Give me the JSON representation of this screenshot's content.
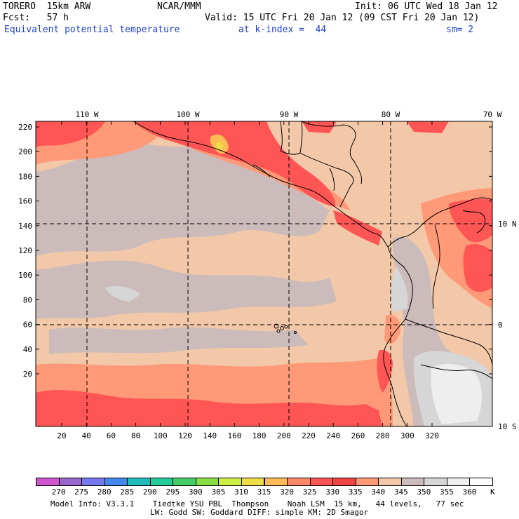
{
  "header": {
    "model": "TORERO  15km ARW",
    "org": "NCAR/MMM",
    "init": "Init: 06 UTC Wed 18 Jan 12",
    "fcst": "Fcst:   57 h",
    "valid": "Valid: 15 UTC Fri 20 Jan 12 (09 CST Fri 20 Jan 12)",
    "field": "Equivalent potential temperature",
    "level": "at k-index =  44",
    "smooth": "sm= 2"
  },
  "map": {
    "lon_labels": [
      "110 W",
      "100 W",
      "90 W",
      "80 W",
      "70 W"
    ],
    "lat_labels": [
      "10 N",
      "0",
      "10 S"
    ],
    "y_ticks": [
      "220",
      "200",
      "180",
      "160",
      "140",
      "120",
      "100",
      "80",
      "60",
      "40",
      "20"
    ],
    "x_ticks": [
      "20",
      "40",
      "60",
      "80",
      "100",
      "120",
      "140",
      "160",
      "180",
      "200",
      "220",
      "240",
      "260",
      "280",
      "300",
      "320"
    ]
  },
  "colorbar": {
    "unit": "K",
    "labels": [
      "270",
      "275",
      "280",
      "285",
      "290",
      "295",
      "300",
      "305",
      "310",
      "315",
      "320",
      "325",
      "330",
      "335",
      "340",
      "345",
      "350",
      "355",
      "360"
    ],
    "colors": [
      "#cc55cc",
      "#9966cc",
      "#7777ee",
      "#4488ee",
      "#22bbbb",
      "#22cc99",
      "#44cc66",
      "#88dd44",
      "#ccee44",
      "#eedd44",
      "#ffbb55",
      "#ff8866",
      "#ff5555",
      "#ee4444",
      "#ff9977",
      "#f2c8a8",
      "#ccbbbb",
      "#d6d6d6",
      "#eeeeee",
      "#ffffff"
    ]
  },
  "footer": {
    "line1": "Model Info: V3.3.1    Tiedtke YSU PBL  Thompson    Noah LSM  15 km,   44 levels,   77 sec",
    "line2": "LW: Godd SW: Goddard DIFF: simple KM: 2D Smagor"
  }
}
